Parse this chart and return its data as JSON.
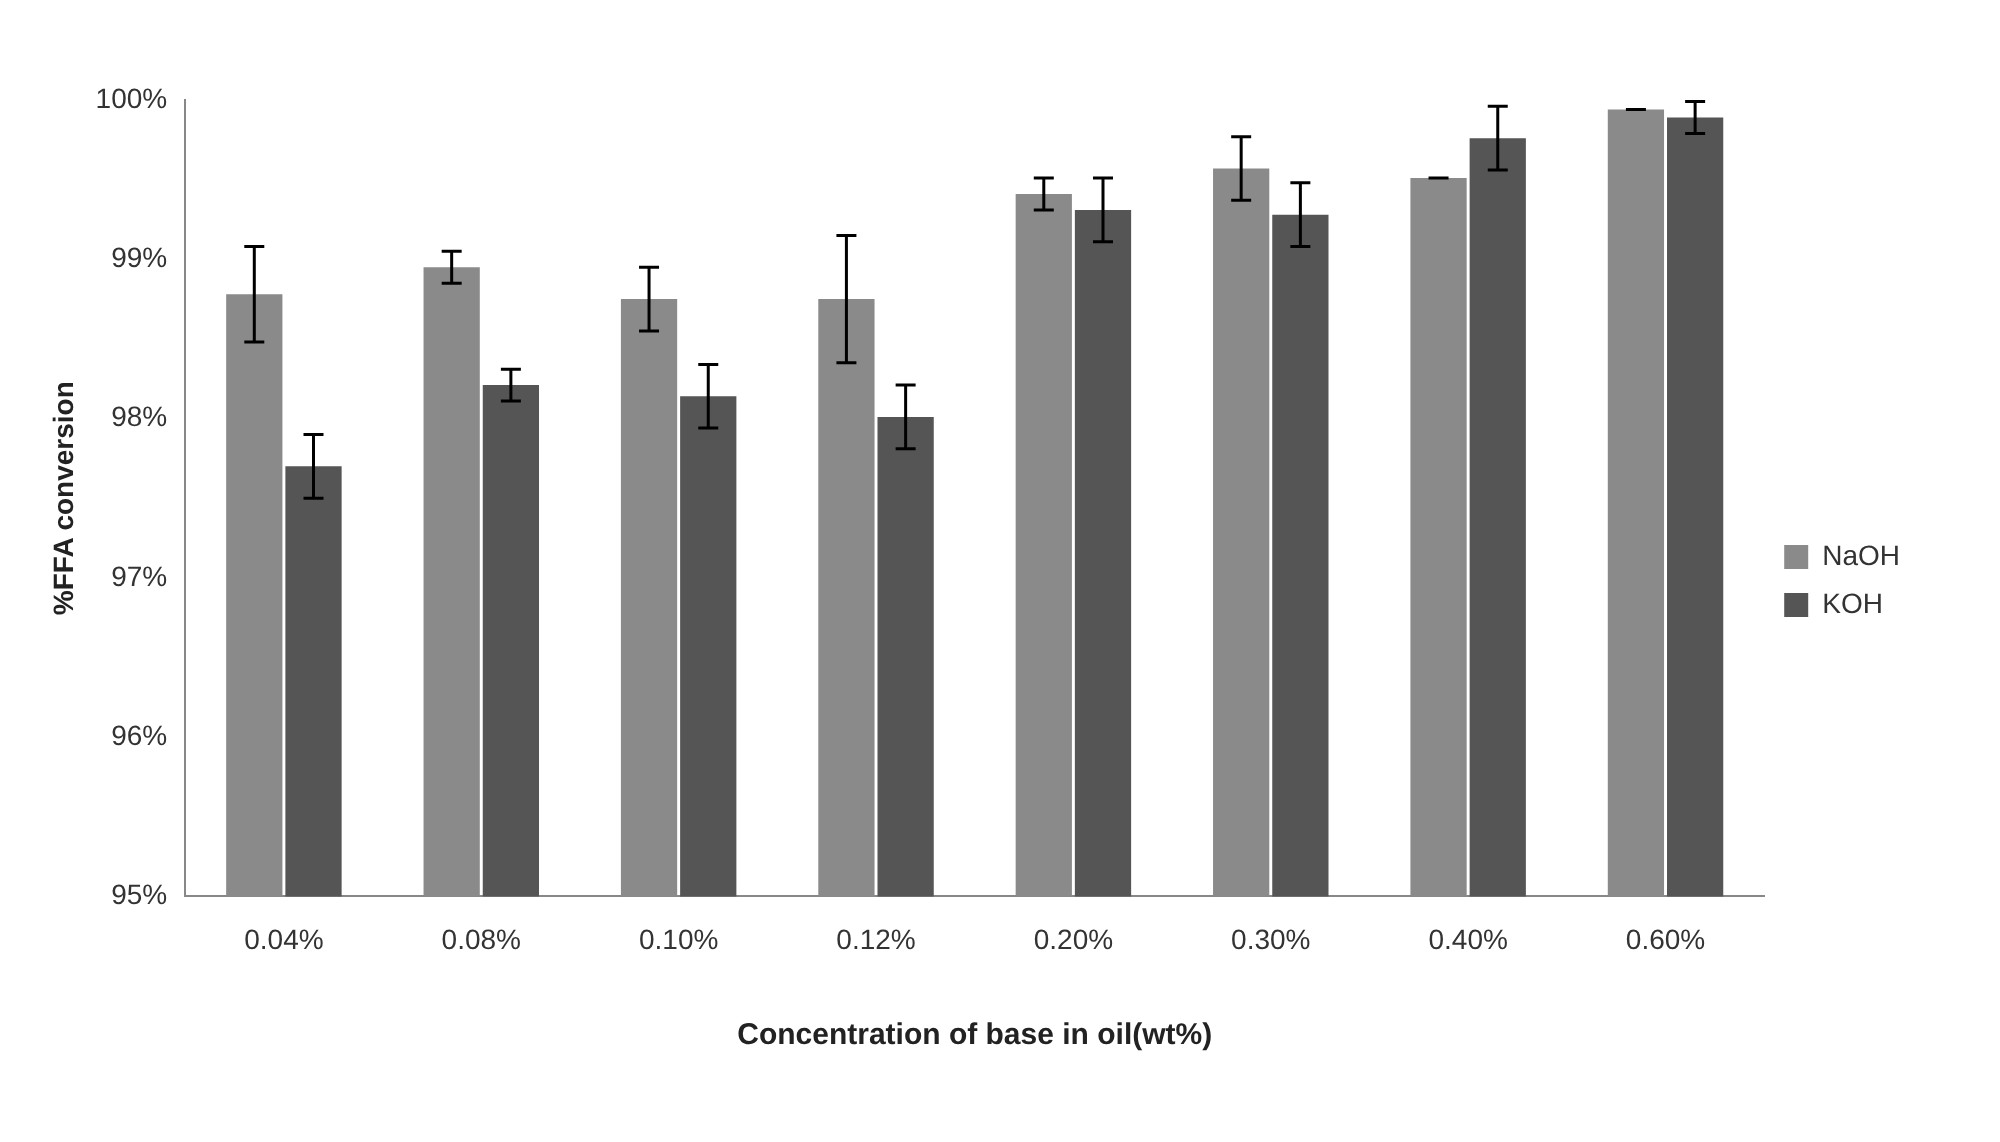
{
  "chart_data": {
    "type": "bar",
    "xlabel": "Concentration of base in oil(wt%)",
    "ylabel": "%FFA conversion",
    "categories": [
      "0.04%",
      "0.08%",
      "0.10%",
      "0.12%",
      "0.20%",
      "0.30%",
      "0.40%",
      "0.60%"
    ],
    "series": [
      {
        "name": "NaOH",
        "color": "#8a8a8a",
        "values": [
          98.78,
          98.95,
          98.75,
          98.75,
          99.41,
          99.57,
          99.51,
          99.94
        ],
        "errors": [
          0.3,
          0.1,
          0.2,
          0.4,
          0.1,
          0.2,
          0,
          0
        ]
      },
      {
        "name": "KOH",
        "color": "#555555",
        "values": [
          97.7,
          98.21,
          98.14,
          98.01,
          99.31,
          99.28,
          99.76,
          99.89
        ],
        "errors": [
          0.2,
          0.1,
          0.2,
          0.2,
          0.2,
          0.2,
          0.2,
          0.1
        ]
      }
    ],
    "ylim": [
      95,
      100
    ],
    "yticks": [
      {
        "value": 95,
        "label": "95%"
      },
      {
        "value": 96,
        "label": "96%"
      },
      {
        "value": 97,
        "label": "97%"
      },
      {
        "value": 98,
        "label": "98%"
      },
      {
        "value": 99,
        "label": "99%"
      },
      {
        "value": 100,
        "label": "100%"
      }
    ],
    "grid": false,
    "legend": "right"
  }
}
